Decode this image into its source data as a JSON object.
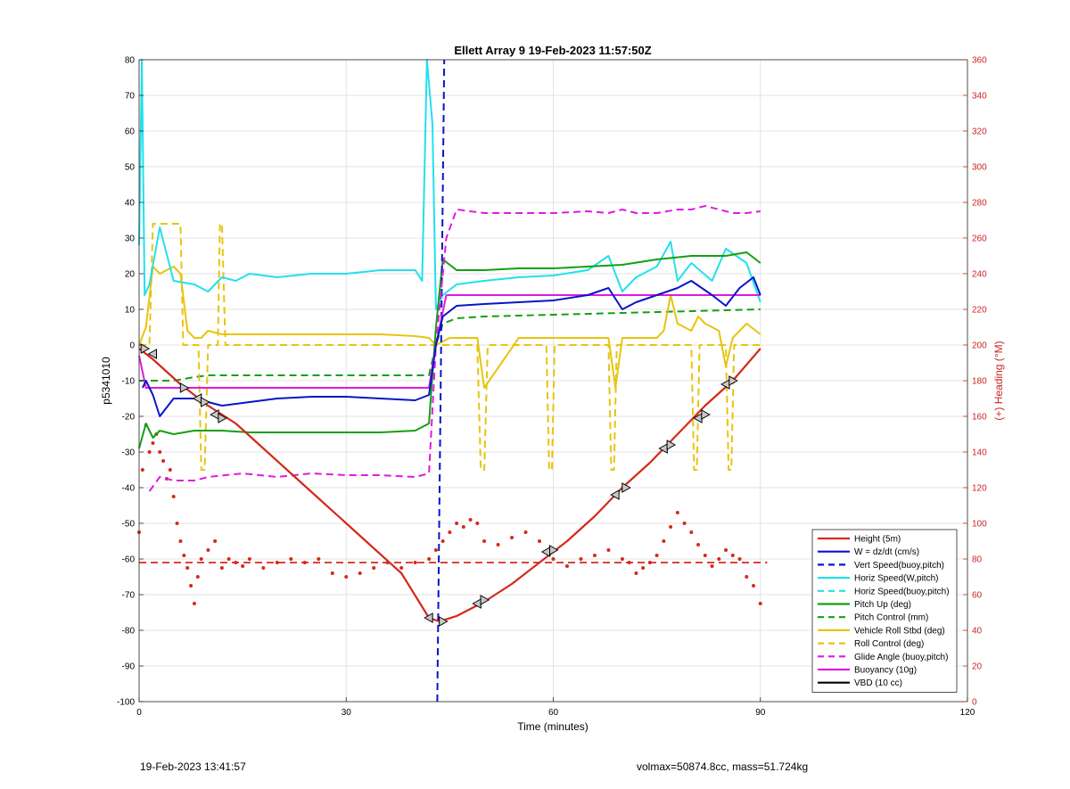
{
  "chart_data": {
    "type": "line",
    "title": "Ellett Array 9 19-Feb-2023 11:57:50Z",
    "xlabel": "Time (minutes)",
    "ylabel_left": "p5341010",
    "ylabel_right": "(+) Heading (°M)",
    "xlim": [
      0,
      120
    ],
    "ylim_left": [
      -100,
      80
    ],
    "ylim_right": [
      0,
      360
    ],
    "x_ticks": [
      0,
      30,
      60,
      90,
      120
    ],
    "y_ticks_left": [
      80,
      70,
      60,
      50,
      40,
      30,
      20,
      10,
      0,
      -10,
      -20,
      -30,
      -40,
      -50,
      -60,
      -70,
      -80,
      -90,
      -100
    ],
    "y_ticks_right": [
      360,
      340,
      320,
      300,
      280,
      260,
      240,
      220,
      200,
      180,
      160,
      140,
      120,
      100,
      80,
      60,
      40,
      20,
      0
    ],
    "grid": true,
    "legend_position": "bottom-right",
    "series": [
      {
        "name": "Height (5m)",
        "color": "#d42a1c",
        "style": "solid",
        "x": [
          0,
          2,
          6,
          10,
          14,
          18,
          22,
          26,
          30,
          34,
          38,
          42,
          43.5,
          46,
          50,
          54,
          58,
          62,
          66,
          70,
          74,
          78,
          82,
          86,
          90
        ],
        "y": [
          -1,
          -4,
          -11,
          -17,
          -22,
          -29,
          -36,
          -43,
          -50,
          -57,
          -64,
          -76.5,
          -77.5,
          -76,
          -72,
          -67,
          -61,
          -55,
          -48,
          -40,
          -33,
          -25,
          -17,
          -10,
          -1
        ]
      },
      {
        "name": "W = dz/dt (cm/s)",
        "color": "#0a14c8",
        "style": "solid",
        "x": [
          0.5,
          1,
          2,
          3,
          5,
          8,
          12,
          16,
          20,
          25,
          30,
          35,
          40,
          42,
          43,
          44,
          46,
          50,
          55,
          60,
          65,
          68,
          70,
          72,
          75,
          78,
          80,
          83,
          85,
          87,
          89,
          90
        ],
        "y": [
          -12,
          -10,
          -14,
          -20,
          -15,
          -15,
          -17,
          -16,
          -15,
          -14.5,
          -14.5,
          -15,
          -15.5,
          -14,
          0,
          8,
          11,
          11.5,
          12,
          12.5,
          14,
          16,
          10,
          12,
          14,
          16,
          18,
          14,
          11,
          16,
          19,
          14
        ]
      },
      {
        "name": "Vert Speed(buoy,pitch)",
        "color": "#0a14c8",
        "style": "dashed",
        "x": [
          43.2,
          44.2
        ],
        "y": [
          -100,
          80
        ]
      },
      {
        "name": "Horiz Speed(W,pitch)",
        "color": "#22e0ee",
        "style": "solid",
        "x": [
          0,
          0.4,
          0.8,
          1.5,
          3,
          5,
          8,
          10,
          12,
          14,
          16,
          20,
          25,
          30,
          35,
          40,
          41,
          41.7,
          42.5,
          43,
          44,
          46,
          50,
          55,
          60,
          65,
          68,
          70,
          72,
          75,
          77,
          78,
          80,
          83,
          85,
          88,
          90
        ],
        "y": [
          28,
          80,
          14,
          17,
          33,
          18,
          17,
          15,
          19,
          18,
          20,
          19,
          20,
          20,
          21,
          21,
          18,
          80,
          62,
          10,
          14,
          17,
          18,
          19,
          19.5,
          21,
          25,
          15,
          19,
          22,
          29,
          18,
          23,
          18,
          27,
          23,
          12
        ]
      },
      {
        "name": "Horiz Speed(buoy,pitch)",
        "color": "#22e0ee",
        "style": "dashed",
        "x": [],
        "y": []
      },
      {
        "name": "Pitch Up (deg)",
        "color": "#12a012",
        "style": "solid",
        "x": [
          0,
          1,
          2,
          3,
          5,
          8,
          12,
          16,
          20,
          25,
          30,
          35,
          40,
          42,
          43,
          44,
          46,
          50,
          55,
          60,
          65,
          70,
          75,
          80,
          85,
          88,
          90
        ],
        "y": [
          -29,
          -22,
          -26,
          -24,
          -25,
          -24,
          -24,
          -24.5,
          -24.5,
          -24.5,
          -24.5,
          -24.5,
          -24,
          -22,
          5,
          24,
          21,
          21,
          21.5,
          21.5,
          22,
          22.5,
          24,
          25,
          25,
          26,
          23
        ]
      },
      {
        "name": "Pitch Control (mm)",
        "color": "#12a012",
        "style": "dashed",
        "x": [
          0,
          5,
          8,
          10,
          20,
          30,
          40,
          42,
          43,
          44,
          46,
          50,
          60,
          70,
          80,
          90
        ],
        "y": [
          -10,
          -10,
          -9,
          -8.5,
          -8.5,
          -8.5,
          -8.5,
          -8.5,
          0,
          6,
          7.5,
          8,
          8.5,
          9,
          9.5,
          10
        ]
      },
      {
        "name": "Vehicle Roll Stbd (deg)",
        "color": "#e8c40e",
        "style": "solid",
        "x": [
          0,
          1,
          2,
          3,
          5,
          6,
          7,
          8,
          9,
          10,
          12,
          15,
          20,
          25,
          30,
          35,
          40,
          42,
          43,
          45,
          48,
          49,
          50,
          55,
          58,
          59,
          60,
          65,
          68,
          69,
          70,
          75,
          76,
          77,
          78,
          80,
          81,
          82,
          84,
          85,
          86,
          88,
          90
        ],
        "y": [
          0,
          5,
          22,
          20,
          22,
          20,
          4,
          2,
          2,
          4,
          3,
          3,
          3,
          3,
          3,
          3,
          2.5,
          2,
          0,
          2,
          2,
          2,
          -12,
          2,
          2,
          2,
          2,
          2,
          2,
          -12,
          2,
          2,
          4,
          14,
          6,
          4,
          8,
          6,
          4,
          -6,
          2,
          6,
          3
        ]
      },
      {
        "name": "Roll Control (deg)",
        "color": "#e8c40e",
        "style": "dashed",
        "x": [
          0,
          1.5,
          2,
          6,
          6.4,
          8,
          8.6,
          9,
          9.5,
          10,
          11.4,
          11.7,
          12,
          12.5,
          13,
          30,
          42,
          43,
          49,
          49.5,
          50,
          50.5,
          51,
          59,
          59.4,
          59.8,
          60.2,
          60.6,
          68,
          68.4,
          68.8,
          69.2,
          69.6,
          80,
          80.4,
          80.8,
          81.2,
          81.6,
          85,
          85.4,
          85.8,
          86.2,
          86.6,
          90
        ],
        "y": [
          0,
          0,
          34,
          34,
          0,
          0,
          0,
          -35,
          -35,
          0,
          0,
          34,
          34,
          0,
          0,
          0,
          0,
          0,
          0,
          -35,
          -35,
          0,
          0,
          0,
          -35,
          -35,
          0,
          0,
          0,
          -35,
          -35,
          0,
          0,
          0,
          -35,
          -35,
          0,
          0,
          0,
          -35,
          -35,
          0,
          0,
          0
        ]
      },
      {
        "name": "Glide Angle (buoy,pitch)",
        "color": "#e01ae0",
        "style": "dashed",
        "x": [
          1.5,
          3,
          5,
          8,
          10,
          15,
          20,
          25,
          30,
          35,
          40,
          42,
          43,
          44.5,
          46,
          50,
          55,
          60,
          65,
          68,
          70,
          72,
          75,
          78,
          80,
          82,
          84,
          86,
          88,
          90
        ],
        "y": [
          -41,
          -37,
          -38,
          -38,
          -37,
          -36,
          -37,
          -36,
          -36.5,
          -36.5,
          -37,
          -36,
          0,
          30,
          38,
          37,
          37,
          37,
          37.5,
          37,
          38,
          37,
          37,
          38,
          38,
          39,
          38,
          37,
          37,
          37.5
        ]
      },
      {
        "name": "Buoyancy (10g)",
        "color": "#e01ae0",
        "style": "solid",
        "x": [
          0,
          1,
          2,
          42,
          43,
          44.5,
          45,
          60,
          90
        ],
        "y": [
          -3,
          -12,
          -12,
          -12,
          0,
          14,
          14,
          14,
          14
        ]
      },
      {
        "name": "VBD (10 cc)",
        "color": "#000000",
        "style": "solid",
        "x": [
          0,
          1,
          1.5,
          5,
          10,
          20,
          30,
          40,
          41.5,
          42,
          43,
          44,
          45,
          46,
          48,
          50,
          52,
          55,
          60,
          70,
          80,
          82,
          83,
          90
        ],
        "y": [
          -1,
          -2,
          -11.5,
          -12,
          -12,
          -12,
          -12,
          -12,
          -12,
          -9,
          0,
          6,
          10,
          11.5,
          12,
          13,
          13.5,
          14,
          14,
          14,
          14,
          15,
          15.5,
          15.5
        ]
      }
    ],
    "heading_scatter": {
      "color": "#d42a1c",
      "x": [
        0,
        0.5,
        1,
        1.5,
        2,
        2.5,
        3,
        3.5,
        4,
        4.5,
        5,
        5.5,
        6,
        6.5,
        7,
        7.5,
        8,
        8.5,
        9,
        10,
        11,
        12,
        13,
        14,
        15,
        16,
        18,
        20,
        22,
        24,
        26,
        28,
        30,
        32,
        34,
        36,
        38,
        40,
        42,
        43,
        44,
        45,
        46,
        47,
        48,
        49,
        50,
        52,
        54,
        56,
        58,
        60,
        62,
        64,
        66,
        68,
        70,
        71,
        72,
        73,
        74,
        75,
        76,
        77,
        78,
        79,
        80,
        81,
        82,
        83,
        84,
        85,
        86,
        87,
        88,
        89,
        90
      ],
      "y": [
        95,
        130,
        155,
        140,
        145,
        150,
        140,
        135,
        125,
        130,
        115,
        100,
        90,
        82,
        75,
        65,
        55,
        70,
        80,
        85,
        90,
        75,
        80,
        78,
        76,
        80,
        75,
        78,
        80,
        78,
        80,
        72,
        70,
        72,
        75,
        78,
        75,
        78,
        80,
        85,
        90,
        95,
        100,
        98,
        102,
        100,
        90,
        88,
        92,
        95,
        90,
        80,
        76,
        80,
        82,
        85,
        80,
        78,
        72,
        75,
        78,
        82,
        90,
        98,
        106,
        100,
        95,
        88,
        82,
        76,
        80,
        85,
        82,
        80,
        70,
        65,
        55
      ]
    },
    "reference_line": {
      "name": "heading reference",
      "color": "#d42a1c",
      "style": "dashed",
      "heading": 78
    },
    "markers": {
      "x": [
        0.8,
        2,
        6.5,
        8.5,
        9.5,
        11,
        12,
        42,
        44,
        49,
        50,
        59,
        60,
        69,
        70.5,
        76,
        77,
        81,
        82,
        85,
        86
      ],
      "y": [
        -1,
        -2.5,
        -12,
        -15,
        -16,
        -19.5,
        -20.5,
        -76.5,
        -77.5,
        -72.5,
        -71.5,
        -58,
        -57.5,
        -42,
        -40,
        -29,
        -28,
        -20.5,
        -19.5,
        -11,
        -10
      ]
    }
  },
  "footer": {
    "left": "19-Feb-2023 13:41:57",
    "right": "volmax=50874.8cc, mass=51.724kg"
  }
}
